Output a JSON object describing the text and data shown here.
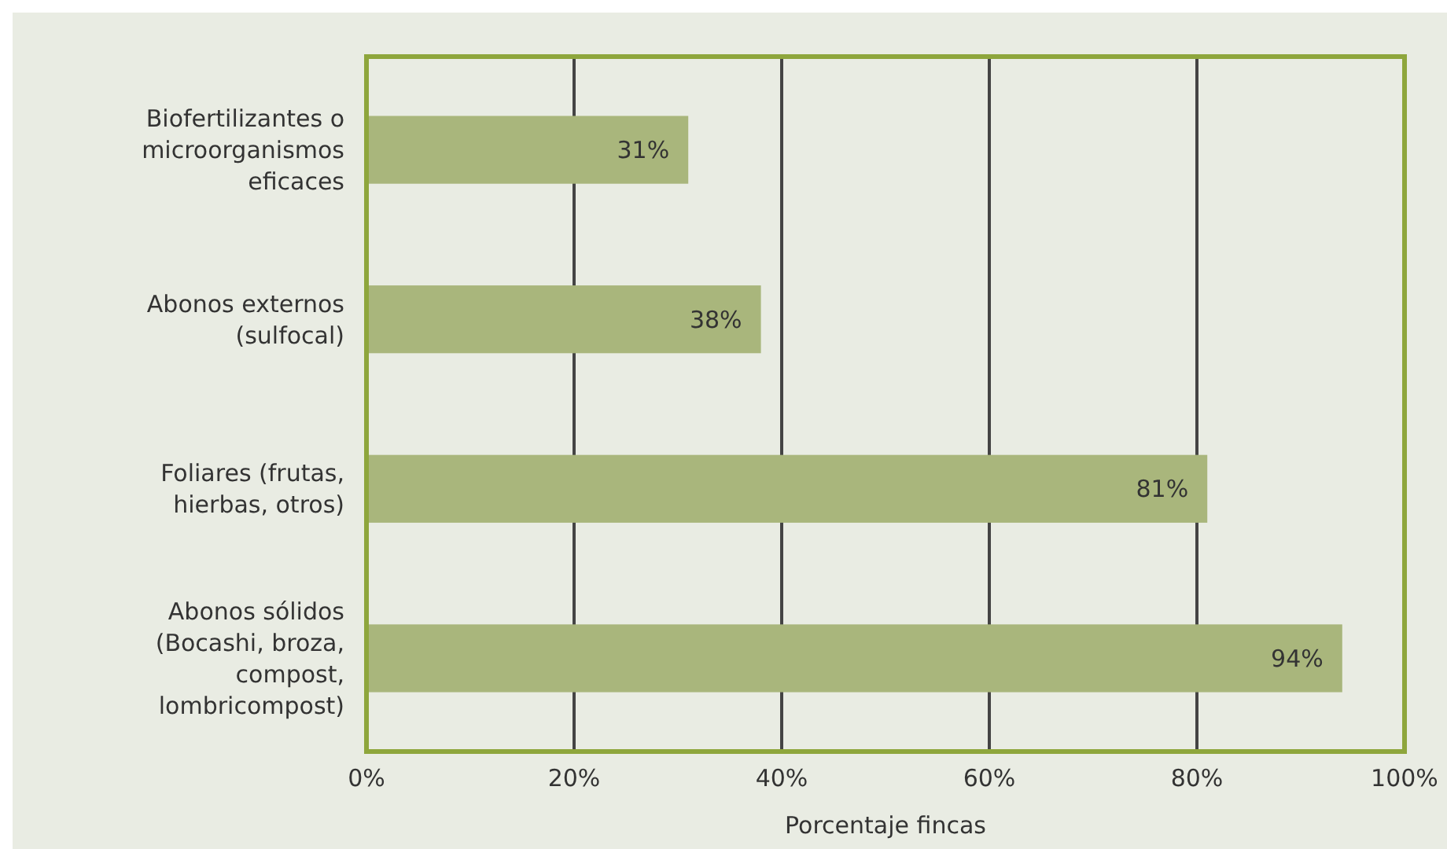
{
  "chart_data": {
    "type": "bar",
    "orientation": "horizontal",
    "xlabel": "Porcentaje fincas",
    "categories": [
      "Biofertilizantes o microorganismos eficaces",
      "Abonos externos (sulfocal)",
      "Foliares (frutas, hierbas, otros)",
      "Abonos sólidos (Bocashi, broza, compost, lombricompost)"
    ],
    "values": [
      31,
      38,
      81,
      94
    ],
    "value_labels": [
      "31%",
      "38%",
      "81%",
      "94%"
    ],
    "color": "#a9b67c",
    "xlim": [
      0,
      100
    ],
    "xticks": [
      {
        "value": 0,
        "label": "0%"
      },
      {
        "value": 20,
        "label": "20%"
      },
      {
        "value": 40,
        "label": "40%"
      },
      {
        "value": 60,
        "label": "60%"
      },
      {
        "value": 80,
        "label": "80%"
      },
      {
        "value": 100,
        "label": "100%"
      }
    ],
    "grid": "x"
  }
}
